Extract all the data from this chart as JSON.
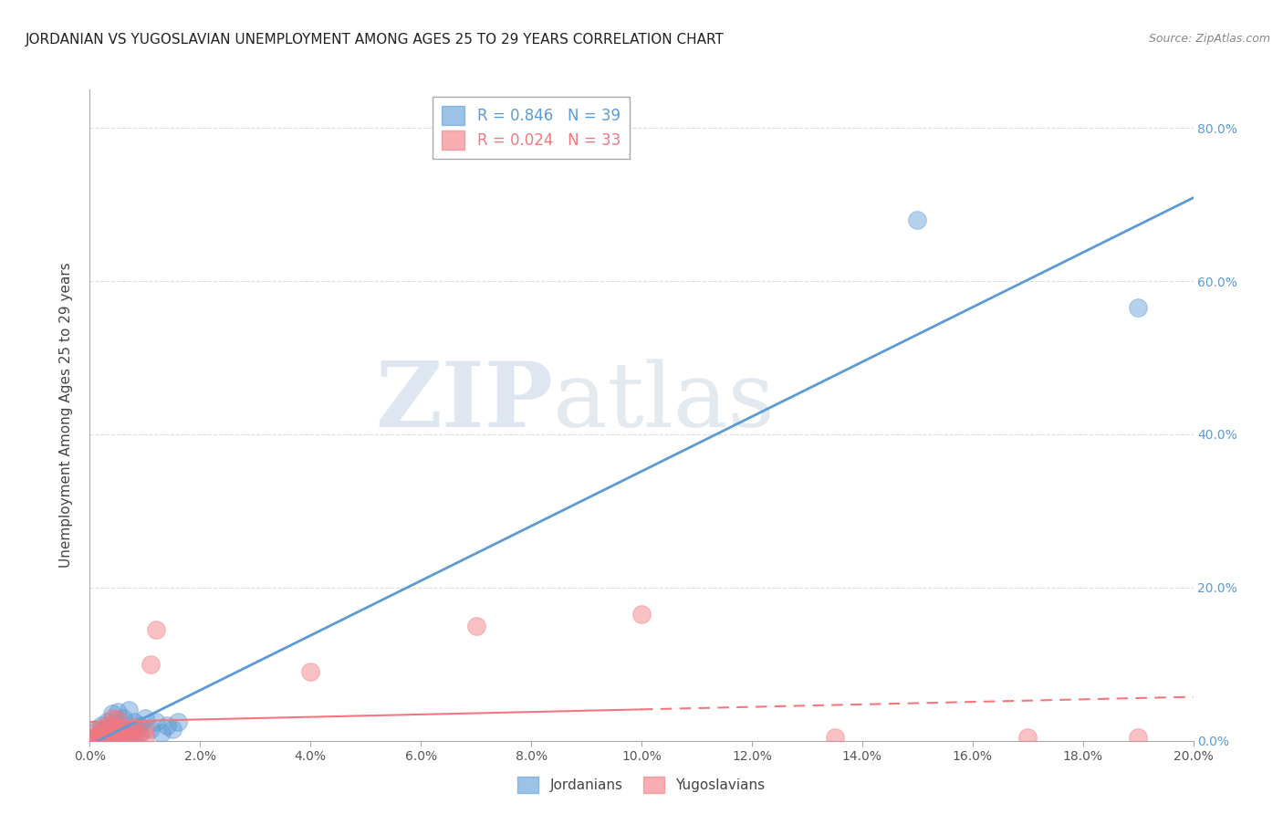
{
  "title": "JORDANIAN VS YUGOSLAVIAN UNEMPLOYMENT AMONG AGES 25 TO 29 YEARS CORRELATION CHART",
  "source": "Source: ZipAtlas.com",
  "ylabel_label": "Unemployment Among Ages 25 to 29 years",
  "xlim": [
    0.0,
    0.2
  ],
  "ylim": [
    0.0,
    0.85
  ],
  "jordan_R": 0.846,
  "jordan_N": 39,
  "yugos_R": 0.024,
  "yugos_N": 33,
  "jordan_color": "#5b9bd5",
  "yugos_color": "#f4777f",
  "right_axis_color": "#5b9bd5",
  "legend_label_jordan": "Jordanians",
  "legend_label_yugos": "Yugoslavians",
  "jordan_scatter_x": [
    0.0,
    0.001,
    0.001,
    0.002,
    0.002,
    0.002,
    0.003,
    0.003,
    0.003,
    0.003,
    0.004,
    0.004,
    0.004,
    0.004,
    0.004,
    0.005,
    0.005,
    0.005,
    0.005,
    0.006,
    0.006,
    0.006,
    0.007,
    0.007,
    0.007,
    0.008,
    0.008,
    0.008,
    0.009,
    0.009,
    0.01,
    0.011,
    0.012,
    0.013,
    0.014,
    0.015,
    0.016,
    0.15,
    0.19
  ],
  "jordan_scatter_y": [
    0.002,
    0.005,
    0.015,
    0.005,
    0.01,
    0.02,
    0.002,
    0.005,
    0.015,
    0.025,
    0.002,
    0.008,
    0.012,
    0.018,
    0.035,
    0.005,
    0.012,
    0.022,
    0.038,
    0.008,
    0.015,
    0.03,
    0.005,
    0.015,
    0.04,
    0.008,
    0.015,
    0.025,
    0.01,
    0.02,
    0.03,
    0.015,
    0.025,
    0.01,
    0.02,
    0.015,
    0.025,
    0.68,
    0.565
  ],
  "yugos_scatter_x": [
    0.0,
    0.001,
    0.001,
    0.002,
    0.002,
    0.002,
    0.003,
    0.003,
    0.003,
    0.004,
    0.004,
    0.004,
    0.004,
    0.005,
    0.005,
    0.005,
    0.006,
    0.006,
    0.007,
    0.007,
    0.008,
    0.008,
    0.009,
    0.01,
    0.01,
    0.011,
    0.012,
    0.04,
    0.07,
    0.1,
    0.135,
    0.17,
    0.19
  ],
  "yugos_scatter_y": [
    0.003,
    0.005,
    0.012,
    0.005,
    0.01,
    0.015,
    0.003,
    0.01,
    0.02,
    0.005,
    0.01,
    0.02,
    0.03,
    0.005,
    0.01,
    0.028,
    0.005,
    0.015,
    0.005,
    0.015,
    0.005,
    0.018,
    0.008,
    0.005,
    0.015,
    0.1,
    0.145,
    0.09,
    0.15,
    0.165,
    0.005,
    0.005,
    0.005
  ],
  "watermark_zip": "ZIP",
  "watermark_atlas": "atlas",
  "grid_color": "#dddddd",
  "background_color": "#ffffff"
}
